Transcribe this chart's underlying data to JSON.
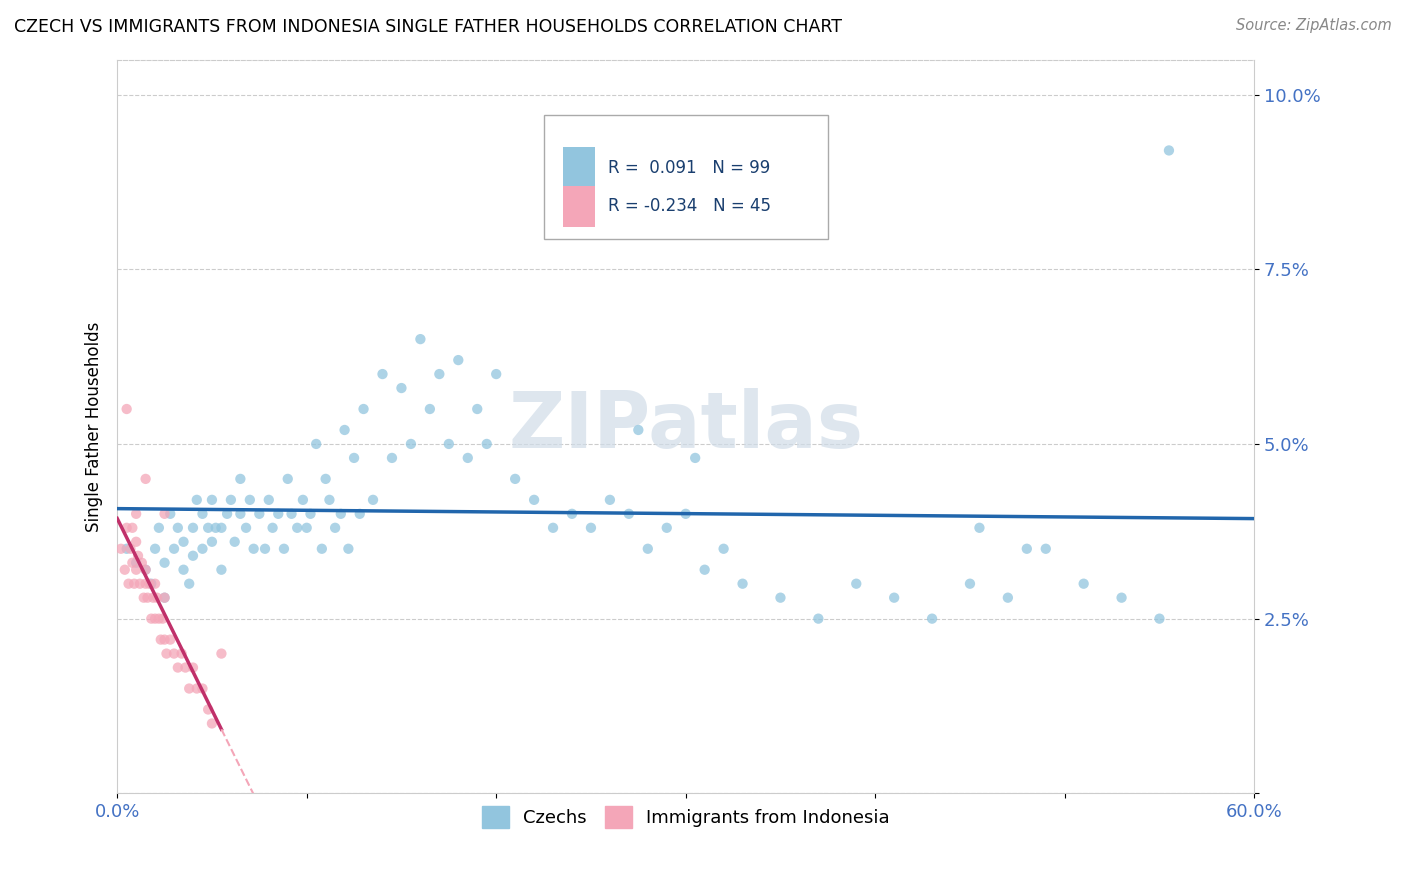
{
  "title": "CZECH VS IMMIGRANTS FROM INDONESIA SINGLE FATHER HOUSEHOLDS CORRELATION CHART",
  "source": "Source: ZipAtlas.com",
  "ylabel": "Single Father Households",
  "xlim": [
    0.0,
    0.6
  ],
  "ylim": [
    0.0,
    0.105
  ],
  "xticks": [
    0.0,
    0.1,
    0.2,
    0.3,
    0.4,
    0.5,
    0.6
  ],
  "yticks": [
    0.0,
    0.025,
    0.05,
    0.075,
    0.1
  ],
  "yticklabels": [
    "",
    "2.5%",
    "5.0%",
    "7.5%",
    "10.0%"
  ],
  "legend_labels": [
    "Czechs",
    "Immigrants from Indonesia"
  ],
  "r_czech": 0.091,
  "n_czech": 99,
  "r_indo": -0.234,
  "n_indo": 45,
  "blue_color": "#92c5de",
  "pink_color": "#f4a6b8",
  "line_blue": "#2166ac",
  "line_pink": "#c0306a",
  "line_pink_dash": "#f4a6b8",
  "background_color": "#ffffff",
  "grid_color": "#cccccc",
  "tick_label_color": "#4472c4",
  "scatter_alpha": 0.75,
  "marker_size": 55,
  "czech_x": [
    0.005,
    0.01,
    0.015,
    0.018,
    0.02,
    0.022,
    0.025,
    0.025,
    0.028,
    0.03,
    0.032,
    0.035,
    0.035,
    0.038,
    0.04,
    0.04,
    0.042,
    0.045,
    0.045,
    0.048,
    0.05,
    0.05,
    0.052,
    0.055,
    0.055,
    0.058,
    0.06,
    0.062,
    0.065,
    0.065,
    0.068,
    0.07,
    0.072,
    0.075,
    0.078,
    0.08,
    0.082,
    0.085,
    0.088,
    0.09,
    0.092,
    0.095,
    0.098,
    0.1,
    0.102,
    0.105,
    0.108,
    0.11,
    0.112,
    0.115,
    0.118,
    0.12,
    0.122,
    0.125,
    0.128,
    0.13,
    0.135,
    0.14,
    0.145,
    0.15,
    0.155,
    0.16,
    0.165,
    0.17,
    0.175,
    0.18,
    0.185,
    0.19,
    0.195,
    0.2,
    0.21,
    0.22,
    0.23,
    0.24,
    0.25,
    0.26,
    0.27,
    0.28,
    0.29,
    0.3,
    0.31,
    0.32,
    0.33,
    0.35,
    0.37,
    0.39,
    0.41,
    0.43,
    0.45,
    0.47,
    0.49,
    0.51,
    0.53,
    0.55,
    0.275,
    0.305,
    0.455,
    0.555,
    0.48
  ],
  "czech_y": [
    0.035,
    0.033,
    0.032,
    0.03,
    0.035,
    0.038,
    0.028,
    0.033,
    0.04,
    0.035,
    0.038,
    0.032,
    0.036,
    0.03,
    0.034,
    0.038,
    0.042,
    0.035,
    0.04,
    0.038,
    0.036,
    0.042,
    0.038,
    0.032,
    0.038,
    0.04,
    0.042,
    0.036,
    0.04,
    0.045,
    0.038,
    0.042,
    0.035,
    0.04,
    0.035,
    0.042,
    0.038,
    0.04,
    0.035,
    0.045,
    0.04,
    0.038,
    0.042,
    0.038,
    0.04,
    0.05,
    0.035,
    0.045,
    0.042,
    0.038,
    0.04,
    0.052,
    0.035,
    0.048,
    0.04,
    0.055,
    0.042,
    0.06,
    0.048,
    0.058,
    0.05,
    0.065,
    0.055,
    0.06,
    0.05,
    0.062,
    0.048,
    0.055,
    0.05,
    0.06,
    0.045,
    0.042,
    0.038,
    0.04,
    0.038,
    0.042,
    0.04,
    0.035,
    0.038,
    0.04,
    0.032,
    0.035,
    0.03,
    0.028,
    0.025,
    0.03,
    0.028,
    0.025,
    0.03,
    0.028,
    0.035,
    0.03,
    0.028,
    0.025,
    0.052,
    0.048,
    0.038,
    0.092,
    0.035
  ],
  "indo_x": [
    0.002,
    0.004,
    0.005,
    0.006,
    0.007,
    0.008,
    0.008,
    0.009,
    0.01,
    0.01,
    0.011,
    0.012,
    0.013,
    0.014,
    0.015,
    0.015,
    0.016,
    0.017,
    0.018,
    0.019,
    0.02,
    0.02,
    0.021,
    0.022,
    0.023,
    0.024,
    0.025,
    0.025,
    0.026,
    0.028,
    0.03,
    0.032,
    0.034,
    0.036,
    0.038,
    0.04,
    0.042,
    0.045,
    0.048,
    0.05,
    0.005,
    0.015,
    0.025,
    0.055,
    0.01
  ],
  "indo_y": [
    0.035,
    0.032,
    0.038,
    0.03,
    0.035,
    0.033,
    0.038,
    0.03,
    0.032,
    0.036,
    0.034,
    0.03,
    0.033,
    0.028,
    0.032,
    0.03,
    0.028,
    0.03,
    0.025,
    0.028,
    0.03,
    0.025,
    0.028,
    0.025,
    0.022,
    0.025,
    0.022,
    0.028,
    0.02,
    0.022,
    0.02,
    0.018,
    0.02,
    0.018,
    0.015,
    0.018,
    0.015,
    0.015,
    0.012,
    0.01,
    0.055,
    0.045,
    0.04,
    0.02,
    0.04
  ]
}
